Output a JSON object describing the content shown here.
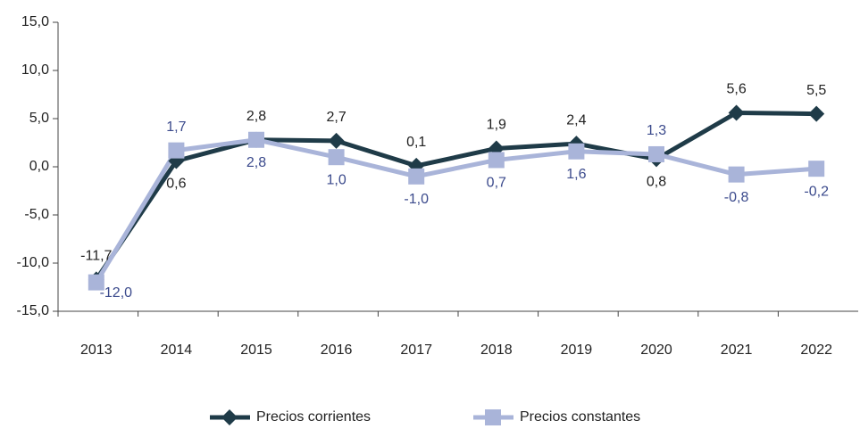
{
  "chart_data": {
    "type": "line",
    "categories": [
      "2013",
      "2014",
      "2015",
      "2016",
      "2017",
      "2018",
      "2019",
      "2020",
      "2021",
      "2022"
    ],
    "series": [
      {
        "name": "Precios corrientes",
        "color": "#1f3b48",
        "label_color": "#222222",
        "marker": "diamond",
        "values": [
          -11.7,
          0.6,
          2.8,
          2.7,
          0.1,
          1.9,
          2.4,
          0.8,
          5.6,
          5.5
        ],
        "value_labels": [
          "-11,7",
          "0,6",
          "2,8",
          "2,7",
          "0,1",
          "1,9",
          "2,4",
          "0,8",
          "5,6",
          "5,5"
        ]
      },
      {
        "name": "Precios constantes",
        "color": "#a9b4d9",
        "label_color": "#3b4a8c",
        "marker": "square",
        "values": [
          -12.0,
          1.7,
          2.8,
          1.0,
          -1.0,
          0.7,
          1.6,
          1.3,
          -0.8,
          -0.2
        ],
        "value_labels": [
          "-12,0",
          "1,7",
          "2,8",
          "1,0",
          "-1,0",
          "0,7",
          "1,6",
          "1,3",
          "-0,8",
          "-0,2"
        ]
      }
    ],
    "ylim": [
      -15,
      15
    ],
    "yticks": [
      {
        "value": -15,
        "label": "-15,0"
      },
      {
        "value": -10,
        "label": "-10,0"
      },
      {
        "value": -5,
        "label": "-5,0"
      },
      {
        "value": 0,
        "label": "0,0"
      },
      {
        "value": 5,
        "label": "5,0"
      },
      {
        "value": 10,
        "label": "10,0"
      },
      {
        "value": 15,
        "label": "15,0"
      }
    ],
    "grid": false,
    "legend": "bottom"
  }
}
